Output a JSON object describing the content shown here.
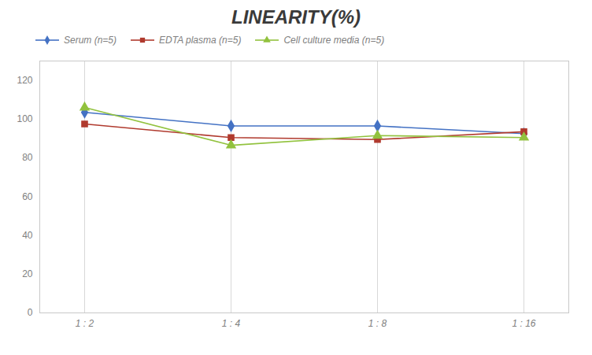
{
  "chart_data": {
    "type": "line",
    "title": "LINEARITY(%)",
    "categories": [
      "1 : 2",
      "1 : 4",
      "1 : 8",
      "1 : 16"
    ],
    "series": [
      {
        "name": "Serum (n=5)",
        "color": "#4472C4",
        "marker": "diamond",
        "values": [
          103.5,
          96.5,
          96.5,
          92.5
        ]
      },
      {
        "name": "EDTA plasma (n=5)",
        "color": "#B03A2E",
        "marker": "square",
        "values": [
          97.5,
          90.5,
          89.5,
          93.5
        ]
      },
      {
        "name": "Cell culture media (n=5)",
        "color": "#92C23E",
        "marker": "triangle",
        "values": [
          106.0,
          86.5,
          91.5,
          90.5
        ]
      }
    ],
    "ylim": [
      0,
      130
    ],
    "yticks": [
      0,
      20,
      40,
      60,
      80,
      100,
      120
    ],
    "grid": "x",
    "legend": "top"
  }
}
